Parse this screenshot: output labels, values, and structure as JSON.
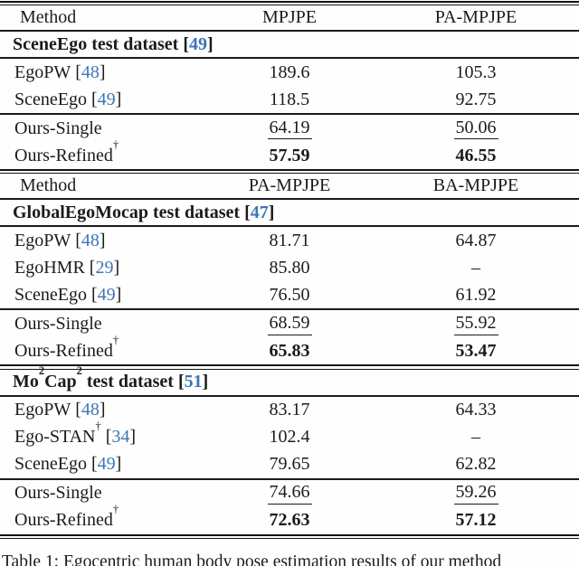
{
  "colors": {
    "citation_blue": "#3e74b8",
    "text": "#1b1b1b",
    "rule": "#1a1a1a",
    "background": "#fefefe"
  },
  "punct": {
    "lb": "[",
    "rb": "]"
  },
  "caption": "Table 1: Egocentric human body pose estimation results of our method",
  "table": {
    "sections": [
      {
        "header": {
          "c1": "Method",
          "c2": "MPJPE",
          "c3": "PA-MPJPE"
        },
        "title": {
          "t1": "SceneEgo test dataset",
          "cite": "49"
        },
        "rows": [
          {
            "m": "EgoPW",
            "cite": "48",
            "v1": "189.6",
            "v2": "105.3"
          },
          {
            "m": "SceneEgo",
            "cite": "49",
            "v1": "118.5",
            "v2": "92.75"
          },
          {
            "m": "Ours-Single",
            "v1": "64.19",
            "v2": "50.06"
          },
          {
            "m": "Ours-Refined",
            "sup": "†",
            "v1": "57.59",
            "v2": "46.55"
          }
        ]
      },
      {
        "header": {
          "c1": "Method",
          "c2": "PA-MPJPE",
          "c3": "BA-MPJPE"
        },
        "title": {
          "t1": "GlobalEgoMocap test dataset",
          "cite": "47"
        },
        "rows": [
          {
            "m": "EgoPW",
            "cite": "48",
            "v1": "81.71",
            "v2": "64.87"
          },
          {
            "m": "EgoHMR",
            "cite": "29",
            "v1": "85.80",
            "v2": "–"
          },
          {
            "m": "SceneEgo",
            "cite": "49",
            "v1": "76.50",
            "v2": "61.92"
          },
          {
            "m": "Ours-Single",
            "v1": "68.59",
            "v2": "55.92"
          },
          {
            "m": "Ours-Refined",
            "sup": "†",
            "v1": "65.83",
            "v2": "53.47"
          }
        ]
      },
      {
        "title": {
          "t1": "Mo",
          "s1": "2",
          "t2": "Cap",
          "s2": "2",
          "t3": " test dataset",
          "cite": "51"
        },
        "rows": [
          {
            "m": "EgoPW",
            "cite": "48",
            "v1": "83.17",
            "v2": "64.33"
          },
          {
            "m": "Ego-STAN",
            "sup": "†",
            "cite": "34",
            "v1": "102.4",
            "v2": "–"
          },
          {
            "m": "SceneEgo",
            "cite": "49",
            "v1": "79.65",
            "v2": "62.82"
          },
          {
            "m": "Ours-Single",
            "v1": "74.66",
            "v2": "59.26"
          },
          {
            "m": "Ours-Refined",
            "sup": "†",
            "v1": "72.63",
            "v2": "57.12"
          }
        ]
      }
    ]
  }
}
